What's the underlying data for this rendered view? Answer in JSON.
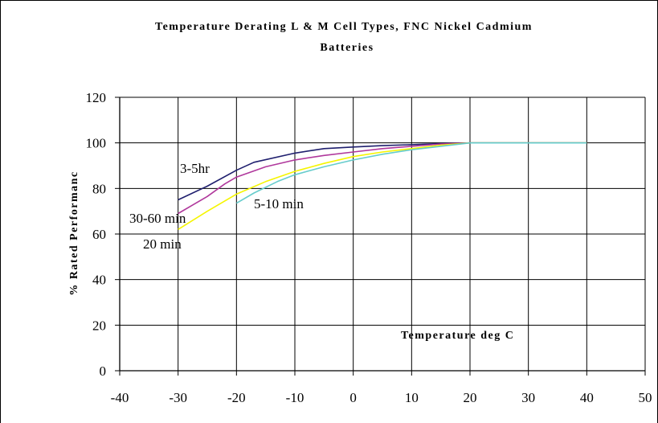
{
  "chart_data": {
    "type": "line",
    "title_line1": "Temperature Derating L & M Cell Types, FNC Nickel Cadmium",
    "title_line2": "Batteries",
    "xlabel": "Temperature deg C",
    "ylabel": "% Rated Performanc",
    "xlim": [
      -40,
      50
    ],
    "ylim": [
      0,
      120
    ],
    "xticks": [
      -40,
      -30,
      -20,
      -10,
      0,
      10,
      20,
      30,
      40,
      50
    ],
    "yticks": [
      0,
      20,
      40,
      60,
      80,
      100,
      120
    ],
    "grid": true,
    "legend": "none",
    "series": [
      {
        "name": "3-5hr",
        "color": "#1f1f6e",
        "x": [
          -30,
          -25,
          -20,
          -17,
          -10,
          -5,
          0,
          5,
          10,
          15,
          20,
          30,
          40
        ],
        "y": [
          75,
          81,
          88,
          91.5,
          95.5,
          97.5,
          98.2,
          98.8,
          99.2,
          99.7,
          100,
          100,
          100
        ]
      },
      {
        "name": "30-60 min",
        "color": "#b0389c",
        "x": [
          -30,
          -25,
          -22,
          -20,
          -15,
          -10,
          -5,
          0,
          5,
          10,
          15,
          20,
          30,
          40
        ],
        "y": [
          69,
          76.5,
          82,
          85,
          89.5,
          92.5,
          94.5,
          96,
          97.5,
          98.5,
          99.5,
          100,
          100,
          100
        ]
      },
      {
        "name": "20 min",
        "color": "#f5f500",
        "x": [
          -30,
          -25,
          -20,
          -15,
          -10,
          -5,
          0,
          5,
          10,
          15,
          20,
          30,
          40
        ],
        "y": [
          62,
          70,
          77.5,
          83,
          87.5,
          91,
          94,
          96,
          97.5,
          99,
          100,
          100,
          100
        ]
      },
      {
        "name": "5-10 min",
        "color": "#66cccc",
        "x": [
          -20,
          -17,
          -13,
          -10,
          -5,
          0,
          5,
          10,
          15,
          20,
          30,
          40
        ],
        "y": [
          73.5,
          78,
          83,
          86,
          89.5,
          92.5,
          95,
          97,
          98.5,
          100,
          100,
          100
        ]
      }
    ]
  }
}
